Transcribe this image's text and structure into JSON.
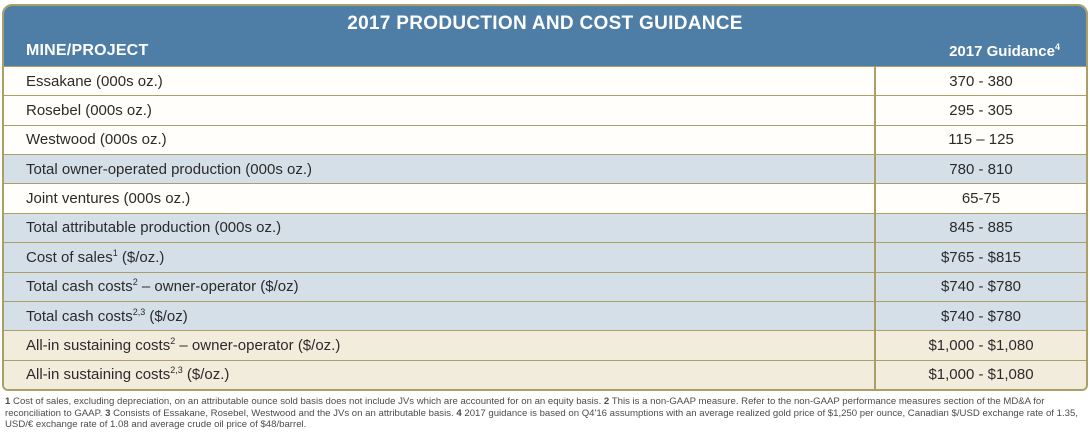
{
  "table": {
    "title": "2017 PRODUCTION AND COST GUIDANCE",
    "columns": {
      "mine_project": "MINE/PROJECT",
      "guidance": "2017 Guidance",
      "guidance_sup": "4"
    },
    "rows": [
      {
        "label_parts": [
          {
            "t": "Essakane (000s oz.)"
          }
        ],
        "value": "370 - 380",
        "bg": "white"
      },
      {
        "label_parts": [
          {
            "t": "Rosebel (000s oz.)"
          }
        ],
        "value": "295 - 305",
        "bg": "white"
      },
      {
        "label_parts": [
          {
            "t": "Westwood (000s oz.)"
          }
        ],
        "value": "115 – 125",
        "bg": "white"
      },
      {
        "label_parts": [
          {
            "t": "Total owner-operated production (000s oz.)"
          }
        ],
        "value": "780 - 810",
        "bg": "blue"
      },
      {
        "label_parts": [
          {
            "t": "Joint ventures (000s oz.)"
          }
        ],
        "value": "65-75",
        "bg": "white"
      },
      {
        "label_parts": [
          {
            "t": "Total attributable production (000s oz.)"
          }
        ],
        "value": "845 - 885",
        "bg": "blue"
      },
      {
        "label_parts": [
          {
            "t": "Cost of sales"
          },
          {
            "s": "1"
          },
          {
            "t": " ($/oz.)"
          }
        ],
        "value": "$765 - $815",
        "bg": "blue"
      },
      {
        "label_parts": [
          {
            "t": "Total cash costs"
          },
          {
            "s": "2"
          },
          {
            "t": " – owner-operator ($/oz)"
          }
        ],
        "value": "$740 - $780",
        "bg": "blue"
      },
      {
        "label_parts": [
          {
            "t": "Total cash costs"
          },
          {
            "s": "2,3"
          },
          {
            "t": " ($/oz)"
          }
        ],
        "value": "$740 - $780",
        "bg": "blue"
      },
      {
        "label_parts": [
          {
            "t": "All-in sustaining costs"
          },
          {
            "s": "2"
          },
          {
            "t": " – owner-operator ($/oz.)"
          }
        ],
        "value": "$1,000 - $1,080",
        "bg": "cream"
      },
      {
        "label_parts": [
          {
            "t": "All-in sustaining costs"
          },
          {
            "s": "2,3"
          },
          {
            "t": " ($/oz.)"
          }
        ],
        "value": "$1,000 - $1,080",
        "bg": "cream"
      }
    ]
  },
  "footnotes": [
    {
      "num": "1",
      "text": " Cost of sales, excluding depreciation, on an attributable ounce sold basis does not include JVs which are accounted for on an equity basis. "
    },
    {
      "num": "2",
      "text": " This is a non-GAAP measure. Refer to the non-GAAP performance measures section of the MD&A for reconciliation to GAAP. "
    },
    {
      "num": "3",
      "text": " Consists of Essakane, Rosebel, Westwood and the JVs on an attributable basis. "
    },
    {
      "num": "4",
      "text": " 2017 guidance is based on Q4'16 assumptions with an average realized gold price of $1,250 per ounce, Canadian $/USD exchange rate of 1.35, USD/€ exchange rate of 1.08 and average crude oil price of $48/barrel."
    }
  ],
  "colors": {
    "header_blue": "#4e7da6",
    "row_blue": "#d4dfe8",
    "row_cream": "#f2ecdc",
    "border_tan": "#ab9e66",
    "text_dark": "#2b2b2b",
    "footnote_gray": "#4c4c4c"
  }
}
